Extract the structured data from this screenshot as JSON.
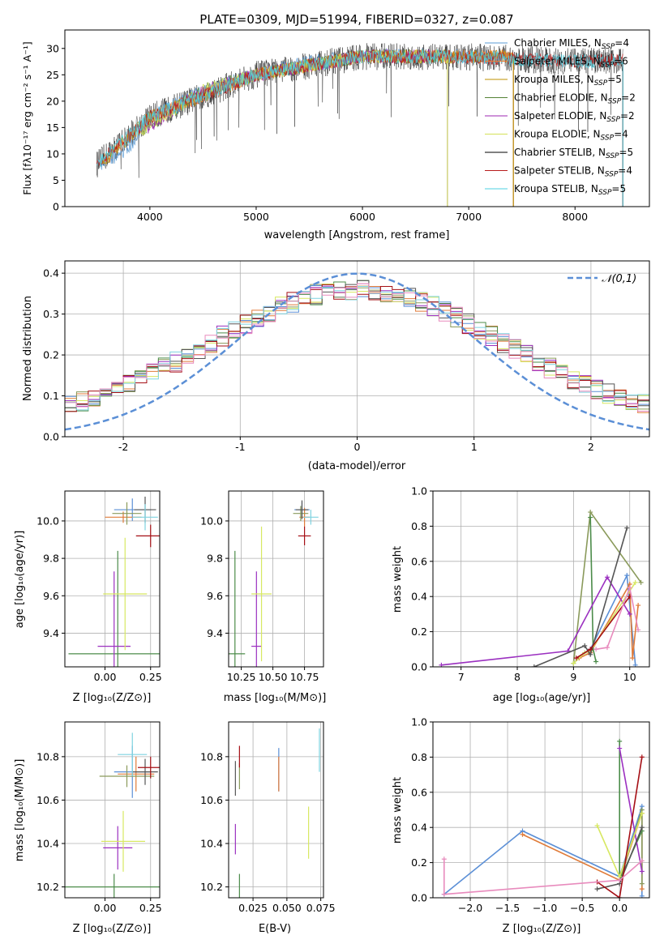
{
  "figure_title": "PLATE=0309, MJD=51994, FIBERID=0327, z=0.087",
  "colors": {
    "spec_model_colors": [
      "#5b9bd5",
      "#ed7d31",
      "#bf9000",
      "#548235",
      "#9c27b0",
      "#d4e157",
      "#000000",
      "#b71c1c",
      "#4dd0e1"
    ],
    "param_fit_colors": [
      "#5b8fd6",
      "#e07b39",
      "#8a9a5b",
      "#4c8c4a",
      "#9b30c0",
      "#d7e862",
      "#555555",
      "#a50f15",
      "#7fd3e0",
      "#e88bbd"
    ],
    "gaussian_color": "#5b8fd6",
    "grid": "#b0b0b0"
  },
  "panels": {
    "spectrum": {
      "xlabel": "wavelength [Angstrom, rest frame]",
      "ylabel": "Flux [fλ10⁻¹⁷ erg cm⁻² s⁻¹ A⁻¹]",
      "legend": [
        "Chabrier MILES, N_SSP=4",
        "Salpeter MILES, N_SSP=6",
        "Kroupa MILES, N_SSP=5",
        "Chabrier ELODIE, N_SSP=2",
        "Salpeter ELODIE, N_SSP=2",
        "Kroupa ELODIE, N_SSP=4",
        "Chabrier STELIB, N_SSP=5",
        "Salpeter STELIB, N_SSP=4",
        "Kroupa STELIB, N_SSP=5"
      ]
    },
    "residuals": {
      "xlabel": "(data-model)/error",
      "ylabel": "Normed distribution",
      "legend": "𝒩(0,1)"
    },
    "age_vs_Z": {
      "xlabel": "Z [log₁₀(Z/Z⊙)]",
      "ylabel": "age  [log₁₀(age/yr)]"
    },
    "age_vs_mass": {
      "xlabel": "mass [log₁₀(M/M⊙)]",
      "ylabel": ""
    },
    "weight_vs_age": {
      "xlabel": "age  [log₁₀(age/yr)]",
      "ylabel": "mass weight"
    },
    "mass_vs_Z": {
      "xlabel": "Z [log₁₀(Z/Z⊙)]",
      "ylabel": "mass [log₁₀(M/M⊙)]"
    },
    "mass_vs_ebv": {
      "xlabel": "E(B-V)",
      "ylabel": ""
    },
    "weight_vs_Z": {
      "xlabel": "Z [log₁₀(Z/Z⊙)]",
      "ylabel": "mass weight"
    }
  },
  "chart_data": [
    {
      "type": "line",
      "name": "spectrum",
      "xlim": [
        3200,
        8700
      ],
      "ylim": [
        0,
        33.5
      ],
      "xticks": [
        4000,
        5000,
        6000,
        7000,
        8000
      ],
      "yticks": [
        0,
        5,
        10,
        15,
        20,
        25,
        30
      ],
      "grid": false,
      "legend_position": "top-right",
      "series": [
        {
          "name": "Chabrier MILES, N_SSP=4",
          "start": 3540,
          "end": 7420,
          "x": [
            3540,
            3800,
            4000,
            4500,
            5000,
            5500,
            6000,
            6500,
            7000,
            7400
          ],
          "y": [
            8,
            11,
            17,
            22,
            25,
            27.5,
            28.5,
            28.8,
            28.4,
            28.6
          ]
        },
        {
          "name": "Salpeter MILES, N_SSP=6",
          "start": 3540,
          "end": 7420,
          "x": [
            3540,
            4000,
            5000,
            6000,
            7000,
            7400
          ],
          "y": [
            8,
            17,
            25,
            28.5,
            28.4,
            28.6
          ]
        },
        {
          "name": "Kroupa MILES, N_SSP=5",
          "start": 3540,
          "end": 7420,
          "x": [
            3540,
            4000,
            5000,
            6000,
            7000,
            7400
          ],
          "y": [
            8,
            17,
            25,
            28.5,
            28.4,
            28.6
          ]
        },
        {
          "name": "Chabrier ELODIE, N_SSP=2",
          "start": 3900,
          "end": 6800,
          "x": [
            3900,
            4500,
            5000,
            6000,
            6800
          ],
          "y": [
            14,
            22,
            25,
            28.5,
            28.5
          ]
        },
        {
          "name": "Salpeter ELODIE, N_SSP=2",
          "start": 3900,
          "end": 6800,
          "x": [
            3900,
            4500,
            5000,
            6000,
            6800
          ],
          "y": [
            14,
            22,
            25,
            28.5,
            28.5
          ]
        },
        {
          "name": "Kroupa ELODIE, N_SSP=4",
          "start": 3900,
          "end": 6800,
          "x": [
            3900,
            4500,
            5000,
            6000,
            6800
          ],
          "y": [
            14,
            22,
            25,
            28.5,
            28.5
          ]
        },
        {
          "name": "Chabrier STELIB, N_SSP=5",
          "start": 3500,
          "end": 8450,
          "x": [
            3500,
            4000,
            5000,
            6000,
            7000,
            8000,
            8450
          ],
          "y": [
            8,
            17,
            25,
            28.5,
            28.4,
            27.5,
            27.8
          ]
        },
        {
          "name": "Salpeter STELIB, N_SSP=4",
          "start": 3500,
          "end": 8450,
          "x": [
            3500,
            4000,
            5000,
            6000,
            7000,
            8000,
            8450
          ],
          "y": [
            8,
            17,
            25,
            28.5,
            28.4,
            27.5,
            27.8
          ]
        },
        {
          "name": "Kroupa STELIB, N_SSP=5",
          "start": 3500,
          "end": 8450,
          "x": [
            3500,
            4000,
            5000,
            6000,
            7000,
            8000,
            8450
          ],
          "y": [
            8,
            17,
            25,
            28.5,
            28.4,
            27.5,
            27.8
          ]
        }
      ]
    },
    {
      "type": "area",
      "name": "residual_histograms",
      "xlim": [
        -2.5,
        2.5
      ],
      "ylim": [
        0,
        0.43
      ],
      "xticks": [
        -2,
        -1,
        0,
        1,
        2
      ],
      "yticks": [
        0.0,
        0.1,
        0.2,
        0.3,
        0.4
      ],
      "grid": true,
      "legend_position": "top-right",
      "gaussian": {
        "mu": 0,
        "sigma": 1,
        "label": "𝒩(0,1)"
      },
      "bin_width": 0.1
    },
    {
      "type": "scatter",
      "name": "age_vs_Z",
      "xlim": [
        -0.22,
        0.3
      ],
      "ylim": [
        9.22,
        10.16
      ],
      "xticks": [
        0.0,
        0.25
      ],
      "yticks": [
        9.4,
        9.6,
        9.8,
        10.0
      ],
      "grid": true,
      "points": [
        {
          "x": 0.15,
          "y": 10.06,
          "xerr": 0.1,
          "yerr": 0.06
        },
        {
          "x": 0.1,
          "y": 10.02,
          "xerr": 0.1,
          "yerr": 0.03
        },
        {
          "x": 0.12,
          "y": 10.04,
          "xerr": 0.08,
          "yerr": 0.06
        },
        {
          "x": 0.07,
          "y": 9.29,
          "xerr": 0.27,
          "yerr": 0.55
        },
        {
          "x": 0.05,
          "y": 9.33,
          "xerr": 0.09,
          "yerr": 0.4
        },
        {
          "x": 0.11,
          "y": 9.61,
          "xerr": 0.12,
          "yerr": 0.3
        },
        {
          "x": 0.22,
          "y": 10.06,
          "xerr": 0.06,
          "yerr": 0.07
        },
        {
          "x": 0.25,
          "y": 9.92,
          "xerr": 0.08,
          "yerr": 0.06
        },
        {
          "x": 0.22,
          "y": 10.02,
          "xerr": 0.07,
          "yerr": 0.07
        }
      ]
    },
    {
      "type": "scatter",
      "name": "age_vs_mass",
      "xlim": [
        10.15,
        10.9
      ],
      "ylim": [
        9.22,
        10.16
      ],
      "xticks": [
        10.25,
        10.5,
        10.75
      ],
      "yticks": [
        9.4,
        9.6,
        9.8,
        10.0
      ],
      "grid": true,
      "points": [
        {
          "x": 10.73,
          "y": 10.06,
          "xerr": 0.06,
          "yerr": 0.04
        },
        {
          "x": 10.75,
          "y": 10.02,
          "xerr": 0.04,
          "yerr": 0.05
        },
        {
          "x": 10.72,
          "y": 10.04,
          "xerr": 0.06,
          "yerr": 0.04
        },
        {
          "x": 10.2,
          "y": 9.29,
          "xerr": 0.08,
          "yerr": 0.55
        },
        {
          "x": 10.37,
          "y": 9.33,
          "xerr": 0.04,
          "yerr": 0.4
        },
        {
          "x": 10.41,
          "y": 9.61,
          "xerr": 0.08,
          "yerr": 0.36
        },
        {
          "x": 10.73,
          "y": 10.06,
          "xerr": 0.05,
          "yerr": 0.05
        },
        {
          "x": 10.75,
          "y": 9.92,
          "xerr": 0.05,
          "yerr": 0.05
        },
        {
          "x": 10.8,
          "y": 10.02,
          "xerr": 0.06,
          "yerr": 0.04
        }
      ]
    },
    {
      "type": "line",
      "name": "weight_vs_age",
      "xlim": [
        6.5,
        10.35
      ],
      "ylim": [
        0,
        1
      ],
      "xticks": [
        7,
        8,
        9,
        10
      ],
      "yticks": [
        0.0,
        0.2,
        0.4,
        0.6,
        0.8,
        1.0
      ],
      "grid": true,
      "series": [
        {
          "x": [
            9.0,
            9.2,
            9.3,
            9.95,
            10.1
          ],
          "y": [
            0.02,
            0.08,
            0.1,
            0.52,
            0.01
          ]
        },
        {
          "x": [
            9.1,
            9.3,
            10.0,
            10.05,
            10.15
          ],
          "y": [
            0.05,
            0.08,
            0.47,
            0.05,
            0.35
          ]
        },
        {
          "x": [
            9.0,
            9.3,
            10.2
          ],
          "y": [
            0.02,
            0.88,
            0.48
          ]
        },
        {
          "x": [
            9.3,
            9.35,
            9.4
          ],
          "y": [
            0.85,
            0.1,
            0.03
          ]
        },
        {
          "x": [
            6.65,
            8.9,
            9.6,
            10.0
          ],
          "y": [
            0.01,
            0.09,
            0.51,
            0.3
          ]
        },
        {
          "x": [
            9.0,
            9.2,
            9.3,
            10.1
          ],
          "y": [
            0.02,
            0.08,
            0.09,
            0.48
          ]
        },
        {
          "x": [
            8.3,
            9.2,
            9.3,
            9.95
          ],
          "y": [
            0.0,
            0.12,
            0.07,
            0.79
          ]
        },
        {
          "x": [
            9.05,
            9.3,
            10.0
          ],
          "y": [
            0.05,
            0.1,
            0.4
          ]
        },
        {
          "x": [
            9.4,
            9.6,
            10.0,
            10.15
          ],
          "y": [
            0.1,
            0.11,
            0.45,
            0.21
          ]
        }
      ]
    },
    {
      "type": "scatter",
      "name": "mass_vs_Z",
      "xlim": [
        -0.22,
        0.3
      ],
      "ylim": [
        10.15,
        10.96
      ],
      "xticks": [
        0.0,
        0.25
      ],
      "yticks": [
        10.2,
        10.4,
        10.6,
        10.8
      ],
      "grid": true,
      "points": [
        {
          "x": 0.15,
          "y": 10.73,
          "xerr": 0.1,
          "yerr": 0.12
        },
        {
          "x": 0.17,
          "y": 10.72,
          "xerr": 0.1,
          "yerr": 0.08
        },
        {
          "x": 0.12,
          "y": 10.71,
          "xerr": 0.15,
          "yerr": 0.05
        },
        {
          "x": 0.05,
          "y": 10.2,
          "xerr": 0.27,
          "yerr": 0.06
        },
        {
          "x": 0.07,
          "y": 10.38,
          "xerr": 0.08,
          "yerr": 0.1
        },
        {
          "x": 0.1,
          "y": 10.41,
          "xerr": 0.12,
          "yerr": 0.14
        },
        {
          "x": 0.22,
          "y": 10.73,
          "xerr": 0.07,
          "yerr": 0.06
        },
        {
          "x": 0.25,
          "y": 10.75,
          "xerr": 0.07,
          "yerr": 0.05
        },
        {
          "x": 0.15,
          "y": 10.81,
          "xerr": 0.08,
          "yerr": 0.1
        }
      ]
    },
    {
      "type": "scatter",
      "name": "mass_vs_ebv",
      "xlim": [
        0.007,
        0.077
      ],
      "ylim": [
        10.15,
        10.96
      ],
      "xticks": [
        0.025,
        0.05,
        0.075
      ],
      "yticks": [
        10.2,
        10.4,
        10.6,
        10.8
      ],
      "grid": true,
      "points": [
        {
          "x": 0.044,
          "y": 10.74,
          "yerr": 0.1
        },
        {
          "x": 0.044,
          "y": 10.72,
          "yerr": 0.08
        },
        {
          "x": 0.015,
          "y": 10.71,
          "yerr": 0.06
        },
        {
          "x": 0.015,
          "y": 10.2,
          "yerr": 0.06
        },
        {
          "x": 0.012,
          "y": 10.42,
          "yerr": 0.07
        },
        {
          "x": 0.066,
          "y": 10.45,
          "yerr": 0.12
        },
        {
          "x": 0.012,
          "y": 10.7,
          "yerr": 0.08
        },
        {
          "x": 0.015,
          "y": 10.8,
          "yerr": 0.05
        },
        {
          "x": 0.074,
          "y": 10.83,
          "yerr": 0.1
        }
      ]
    },
    {
      "type": "line",
      "name": "weight_vs_Z",
      "xlim": [
        -2.5,
        0.4
      ],
      "ylim": [
        0,
        1
      ],
      "xticks": [
        -2.0,
        -1.5,
        -1.0,
        -0.5,
        0.0
      ],
      "yticks": [
        0.0,
        0.2,
        0.4,
        0.6,
        0.8,
        1.0
      ],
      "grid": true,
      "series": [
        {
          "x": [
            -2.35,
            -1.3,
            0.0,
            0.3,
            0.3
          ],
          "y": [
            0.02,
            0.38,
            0.12,
            0.52,
            0.01
          ]
        },
        {
          "x": [
            -1.3,
            0.0,
            0.3,
            0.3
          ],
          "y": [
            0.36,
            0.1,
            0.48,
            0.05
          ]
        },
        {
          "x": [
            0.0,
            0.3,
            0.3
          ],
          "y": [
            0.1,
            0.5,
            0.08
          ]
        },
        {
          "x": [
            0.0,
            0.0,
            0.3
          ],
          "y": [
            0.89,
            0.1,
            0.38
          ]
        },
        {
          "x": [
            0.0,
            0.3
          ],
          "y": [
            0.85,
            0.15
          ]
        },
        {
          "x": [
            -0.3,
            0.0,
            0.3
          ],
          "y": [
            0.41,
            0.12,
            0.48
          ]
        },
        {
          "x": [
            -0.3,
            0.0,
            0.3
          ],
          "y": [
            0.05,
            0.08,
            0.4
          ]
        },
        {
          "x": [
            -0.3,
            0.0,
            0.3
          ],
          "y": [
            0.09,
            0.0,
            0.8
          ]
        },
        {
          "x": [
            -2.35,
            -2.35,
            0.0,
            0.3
          ],
          "y": [
            0.22,
            0.02,
            0.1,
            0.21
          ]
        }
      ]
    }
  ]
}
